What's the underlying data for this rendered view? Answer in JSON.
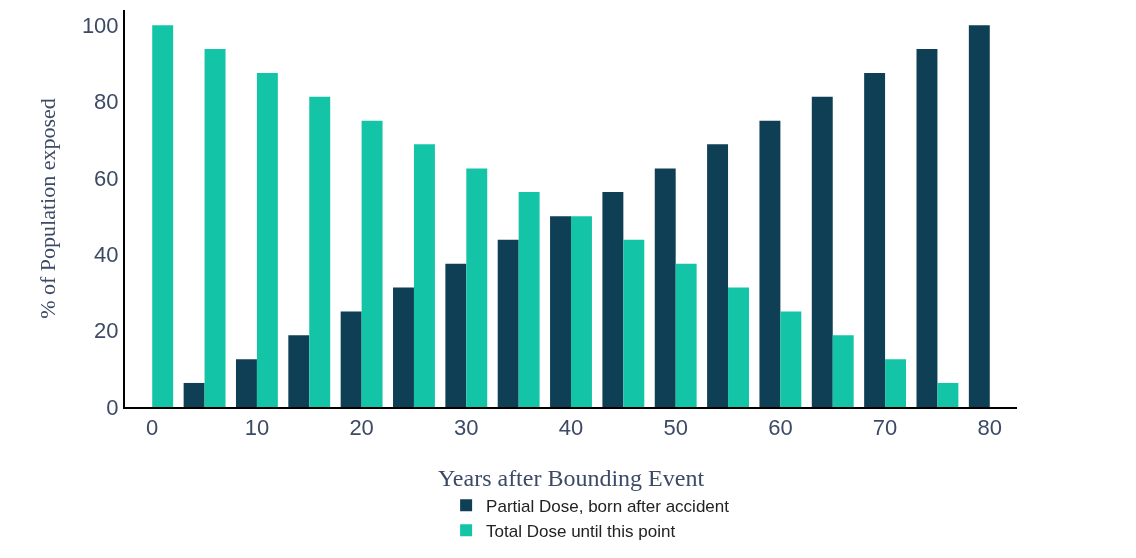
{
  "chart_data": {
    "type": "bar",
    "xlabel": "Years after Bounding Event",
    "ylabel": "% of Population exposed",
    "x": [
      0,
      5,
      10,
      15,
      20,
      25,
      30,
      35,
      40,
      45,
      50,
      55,
      60,
      65,
      70,
      75,
      80
    ],
    "series": [
      {
        "name": "Partial Dose, born after accident",
        "color": "#0e3f55",
        "values": [
          0,
          6.3,
          12.5,
          18.8,
          25,
          31.3,
          37.5,
          43.8,
          50,
          56.3,
          62.5,
          68.8,
          75,
          81.3,
          87.5,
          93.8,
          100
        ]
      },
      {
        "name": "Total Dose until this point",
        "color": "#13c4a6",
        "values": [
          100,
          93.8,
          87.5,
          81.3,
          75,
          68.8,
          62.5,
          56.3,
          50,
          43.8,
          37.5,
          31.3,
          25,
          18.8,
          12.5,
          6.3,
          0
        ]
      }
    ],
    "xlim": [
      -2.6,
      82.6
    ],
    "xticks": [
      0,
      10,
      20,
      30,
      40,
      50,
      60,
      70,
      80
    ],
    "ylim": [
      0,
      104
    ],
    "yticks": [
      0,
      20,
      40,
      60,
      80,
      100
    ],
    "grid": false,
    "legend": "bottom"
  }
}
